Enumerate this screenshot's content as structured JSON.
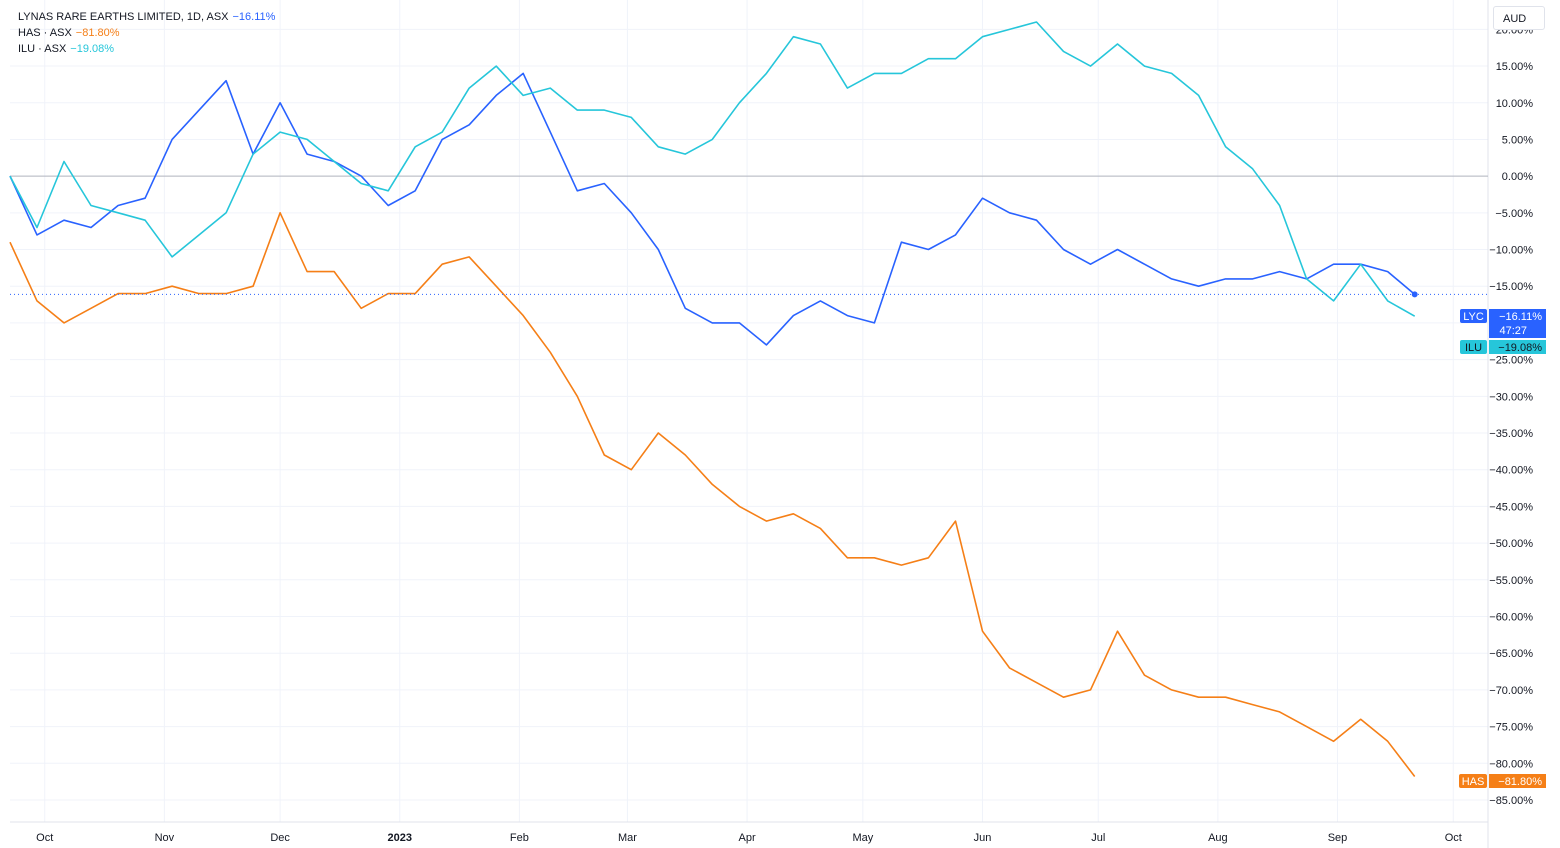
{
  "legend": [
    {
      "label": "LYNAS RARE EARTHS LIMITED, 1D, ASX",
      "value": "−16.11%",
      "color": "#2962ff"
    },
    {
      "label": "HAS · ASX",
      "value": "−81.80%",
      "color": "#f57f17"
    },
    {
      "label": "ILU · ASX",
      "value": "−19.08%",
      "color": "#26c6da"
    }
  ],
  "currency": "AUD",
  "price_labels": [
    {
      "symbol": "LYC",
      "value": "−16.11%",
      "countdown": "47:27",
      "color": "#2962ff"
    },
    {
      "symbol": "ILU",
      "value": "−19.08%",
      "color": "#26c6da"
    },
    {
      "symbol": "HAS",
      "value": "−81.80%",
      "color": "#f57f17"
    }
  ],
  "chart_data": {
    "type": "line",
    "ylim": [
      -88,
      24
    ],
    "y_ticks": [
      20,
      15,
      10,
      5,
      0,
      -5,
      -10,
      -15,
      -20,
      -25,
      -30,
      -35,
      -40,
      -45,
      -50,
      -55,
      -60,
      -65,
      -70,
      -75,
      -80,
      -85
    ],
    "y_tick_labels": [
      "20.00%",
      "15.00%",
      "10.00%",
      "5.00%",
      "0.00%",
      "−5.00%",
      "−10.00%",
      "−15.00%",
      "−20.00%",
      "−25.00%",
      "−30.00%",
      "−35.00%",
      "−40.00%",
      "−45.00%",
      "−50.00%",
      "−55.00%",
      "−60.00%",
      "−65.00%",
      "−70.00%",
      "−75.00%",
      "−80.00%",
      "−85.00%"
    ],
    "x_ticks": [
      {
        "date": "2022-10-01",
        "label": "Oct",
        "bold": false
      },
      {
        "date": "2022-11-01",
        "label": "Nov",
        "bold": false
      },
      {
        "date": "2022-12-01",
        "label": "Dec",
        "bold": false
      },
      {
        "date": "2023-01-01",
        "label": "2023",
        "bold": true
      },
      {
        "date": "2023-02-01",
        "label": "Feb",
        "bold": false
      },
      {
        "date": "2023-03-01",
        "label": "Mar",
        "bold": false
      },
      {
        "date": "2023-04-01",
        "label": "Apr",
        "bold": false
      },
      {
        "date": "2023-05-01",
        "label": "May",
        "bold": false
      },
      {
        "date": "2023-06-01",
        "label": "Jun",
        "bold": false
      },
      {
        "date": "2023-07-01",
        "label": "Jul",
        "bold": false
      },
      {
        "date": "2023-08-01",
        "label": "Aug",
        "bold": false
      },
      {
        "date": "2023-09-01",
        "label": "Sep",
        "bold": false
      },
      {
        "date": "2023-10-01",
        "label": "Oct",
        "bold": false
      }
    ],
    "x_range": [
      "2022-09-22",
      "2023-10-10"
    ],
    "grid": true,
    "legend": "top-left",
    "series": [
      {
        "name": "LYC",
        "color": "#2962ff",
        "x": [
          "2022-09-22",
          "2022-09-29",
          "2022-10-06",
          "2022-10-13",
          "2022-10-20",
          "2022-10-27",
          "2022-11-03",
          "2022-11-10",
          "2022-11-17",
          "2022-11-24",
          "2022-12-01",
          "2022-12-08",
          "2022-12-15",
          "2022-12-22",
          "2022-12-29",
          "2023-01-05",
          "2023-01-12",
          "2023-01-19",
          "2023-01-26",
          "2023-02-02",
          "2023-02-09",
          "2023-02-16",
          "2023-02-23",
          "2023-03-02",
          "2023-03-09",
          "2023-03-16",
          "2023-03-23",
          "2023-03-30",
          "2023-04-06",
          "2023-04-13",
          "2023-04-20",
          "2023-04-27",
          "2023-05-04",
          "2023-05-11",
          "2023-05-18",
          "2023-05-25",
          "2023-06-01",
          "2023-06-08",
          "2023-06-15",
          "2023-06-22",
          "2023-06-29",
          "2023-07-06",
          "2023-07-13",
          "2023-07-20",
          "2023-07-27",
          "2023-08-03",
          "2023-08-10",
          "2023-08-17",
          "2023-08-24",
          "2023-08-31",
          "2023-09-07",
          "2023-09-14",
          "2023-09-21"
        ],
        "values": [
          0,
          -8,
          -6,
          -7,
          -4,
          -3,
          5,
          9,
          13,
          3,
          10,
          3,
          2,
          0,
          -4,
          -2,
          5,
          7,
          11,
          14,
          6,
          -2,
          -1,
          -5,
          -10,
          -18,
          -20,
          -20,
          -23,
          -19,
          -17,
          -19,
          -20,
          -9,
          -10,
          -8,
          -3,
          -5,
          -6,
          -10,
          -12,
          -10,
          -12,
          -14,
          -15,
          -14,
          -14,
          -13,
          -14,
          -12,
          -12,
          -13,
          -16.11
        ]
      },
      {
        "name": "HAS",
        "color": "#f57f17",
        "x": [
          "2022-09-22",
          "2022-09-29",
          "2022-10-06",
          "2022-10-13",
          "2022-10-20",
          "2022-10-27",
          "2022-11-03",
          "2022-11-10",
          "2022-11-17",
          "2022-11-24",
          "2022-12-01",
          "2022-12-08",
          "2022-12-15",
          "2022-12-22",
          "2022-12-29",
          "2023-01-05",
          "2023-01-12",
          "2023-01-19",
          "2023-01-26",
          "2023-02-02",
          "2023-02-09",
          "2023-02-16",
          "2023-02-23",
          "2023-03-02",
          "2023-03-09",
          "2023-03-16",
          "2023-03-23",
          "2023-03-30",
          "2023-04-06",
          "2023-04-13",
          "2023-04-20",
          "2023-04-27",
          "2023-05-04",
          "2023-05-11",
          "2023-05-18",
          "2023-05-25",
          "2023-06-01",
          "2023-06-08",
          "2023-06-15",
          "2023-06-22",
          "2023-06-29",
          "2023-07-06",
          "2023-07-13",
          "2023-07-20",
          "2023-07-27",
          "2023-08-03",
          "2023-08-10",
          "2023-08-17",
          "2023-08-24",
          "2023-08-31",
          "2023-09-07",
          "2023-09-14",
          "2023-09-21"
        ],
        "values": [
          -9,
          -17,
          -20,
          -18,
          -16,
          -16,
          -15,
          -16,
          -16,
          -15,
          -5,
          -13,
          -13,
          -18,
          -16,
          -16,
          -12,
          -11,
          -15,
          -19,
          -24,
          -30,
          -38,
          -40,
          -35,
          -38,
          -42,
          -45,
          -47,
          -46,
          -48,
          -52,
          -52,
          -53,
          -52,
          -47,
          -62,
          -67,
          -69,
          -71,
          -70,
          -62,
          -68,
          -70,
          -71,
          -71,
          -72,
          -73,
          -75,
          -77,
          -74,
          -77,
          -81.8
        ]
      },
      {
        "name": "ILU",
        "color": "#26c6da",
        "x": [
          "2022-09-22",
          "2022-09-29",
          "2022-10-06",
          "2022-10-13",
          "2022-10-20",
          "2022-10-27",
          "2022-11-03",
          "2022-11-10",
          "2022-11-17",
          "2022-11-24",
          "2022-12-01",
          "2022-12-08",
          "2022-12-15",
          "2022-12-22",
          "2022-12-29",
          "2023-01-05",
          "2023-01-12",
          "2023-01-19",
          "2023-01-26",
          "2023-02-02",
          "2023-02-09",
          "2023-02-16",
          "2023-02-23",
          "2023-03-02",
          "2023-03-09",
          "2023-03-16",
          "2023-03-23",
          "2023-03-30",
          "2023-04-06",
          "2023-04-13",
          "2023-04-20",
          "2023-04-27",
          "2023-05-04",
          "2023-05-11",
          "2023-05-18",
          "2023-05-25",
          "2023-06-01",
          "2023-06-08",
          "2023-06-15",
          "2023-06-22",
          "2023-06-29",
          "2023-07-06",
          "2023-07-13",
          "2023-07-20",
          "2023-07-27",
          "2023-08-03",
          "2023-08-10",
          "2023-08-17",
          "2023-08-24",
          "2023-08-31",
          "2023-09-07",
          "2023-09-14",
          "2023-09-21"
        ],
        "values": [
          0,
          -7,
          2,
          -4,
          -5,
          -6,
          -11,
          -8,
          -5,
          3,
          6,
          5,
          2,
          -1,
          -2,
          4,
          6,
          12,
          15,
          11,
          12,
          9,
          9,
          8,
          4,
          3,
          5,
          10,
          14,
          19,
          18,
          12,
          14,
          14,
          16,
          16,
          19,
          20,
          21,
          17,
          15,
          18,
          15,
          14,
          11,
          4,
          1,
          -4,
          -14,
          -17,
          -12,
          -17,
          -19.08
        ]
      }
    ]
  }
}
